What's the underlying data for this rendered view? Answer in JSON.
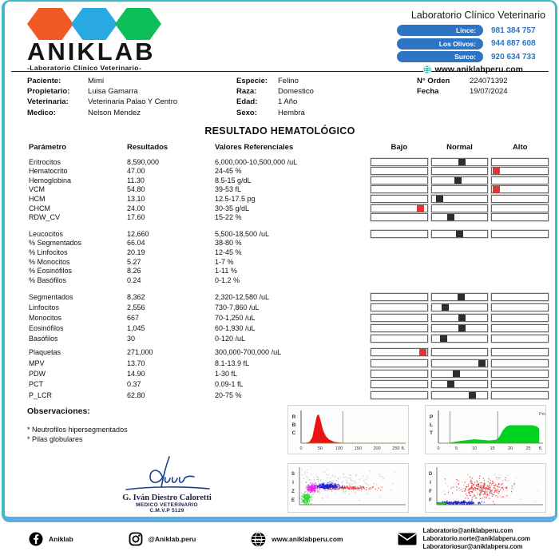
{
  "colors": {
    "hex_orange": "#F15A25",
    "hex_blue": "#29A9E1",
    "hex_green": "#0DBF5A",
    "pill_blue": "#2E74C4",
    "phone_blue": "#2E74C4",
    "globe_teal": "#17B3A0",
    "marker_black": "#2E2E2E",
    "marker_red": "#E23636",
    "border_teal": "#41BAC8",
    "border_blue": "#5CADE2",
    "signature_blue": "#1B3F8F"
  },
  "header": {
    "logo": {
      "brand": "ANIKLAB",
      "tagline": "-Laboratorio Clinico Veterinario-"
    },
    "title": "Laboratorio Clínico Veterinario",
    "phones": [
      {
        "label": "Lince:",
        "number": "981 384 757"
      },
      {
        "label": "Los Olivos:",
        "number": "944 887 608"
      },
      {
        "label": "Surco:",
        "number": "920 634 733"
      }
    ],
    "website": "www.aniklabperu.com"
  },
  "patient": {
    "left": [
      {
        "label": "Paciente:",
        "value": "Mimi"
      },
      {
        "label": "Propietario:",
        "value": "Luisa Gamarra"
      },
      {
        "label": "Veterinaria:",
        "value": "Veterinaria Palao Y Centro"
      },
      {
        "label": "Medico:",
        "value": "Nelson Mendez"
      }
    ],
    "middle": [
      {
        "label": "Especie:",
        "value": "Felino"
      },
      {
        "label": "Raza:",
        "value": "Domestico"
      },
      {
        "label": "Edad:",
        "value": "1 Año"
      },
      {
        "label": "Sexo:",
        "value": "Hembra"
      }
    ],
    "right": [
      {
        "label": "N° Orden",
        "value": "224071392"
      },
      {
        "label": "Fecha",
        "value": "19/07/2024"
      }
    ]
  },
  "report": {
    "title": "RESULTADO HEMATOLÓGICO",
    "columns": {
      "param": "Parámetro",
      "result": "Resultados",
      "ref": "Valores Referenciales",
      "bajo": "Bajo",
      "normal": "Normal",
      "alto": "Alto"
    },
    "groups": [
      {
        "rows": [
          {
            "param": "Eritrocitos",
            "result": "8,590,000",
            "ref": "6,000,000-10,500,000 /uL",
            "marker": {
              "box": "normal",
              "pos": 0.54,
              "color": "black"
            }
          },
          {
            "param": "Hematocrito",
            "result": "47.00",
            "ref": "24-45 %",
            "marker": {
              "box": "alto",
              "pos": 0.06,
              "color": "red"
            }
          },
          {
            "param": "Hemoglobina",
            "result": "11.30",
            "ref": "8.5-15 g/dL",
            "marker": {
              "box": "normal",
              "pos": 0.46,
              "color": "black"
            }
          },
          {
            "param": "VCM",
            "result": "54.80",
            "ref": "39-53 fL",
            "marker": {
              "box": "alto",
              "pos": 0.06,
              "color": "red"
            }
          },
          {
            "param": "HCM",
            "result": "13.10",
            "ref": "12.5-17.5 pg",
            "marker": {
              "box": "normal",
              "pos": 0.14,
              "color": "black"
            }
          },
          {
            "param": "CHCM",
            "result": "24.00",
            "ref": "30-35 g/dL",
            "marker": {
              "box": "bajo",
              "pos": 0.87,
              "color": "red"
            }
          },
          {
            "param": "RDW_CV",
            "result": "17.60",
            "ref": "15-22 %",
            "marker": {
              "box": "normal",
              "pos": 0.33,
              "color": "black"
            }
          }
        ]
      },
      {
        "rows": [
          {
            "param": "Leucocitos",
            "result": "12,660",
            "ref": "5,500-18,500 /uL",
            "marker": {
              "box": "normal",
              "pos": 0.49,
              "color": "black"
            }
          },
          {
            "param": "% Segmentados",
            "result": "66.04",
            "ref": "38-80 %",
            "marker": null
          },
          {
            "param": "% Linfocitos",
            "result": "20.19",
            "ref": "12-45 %",
            "marker": null
          },
          {
            "param": "% Monocitos",
            "result": "5.27",
            "ref": "1-7 %",
            "marker": null
          },
          {
            "param": "% Eosinófilos",
            "result": "8.26",
            "ref": "1-11 %",
            "marker": null
          },
          {
            "param": "% Basófilos",
            "result": "0.24",
            "ref": "0-1.2 %",
            "marker": null
          }
        ]
      },
      {
        "rows": [
          {
            "param": "Segmentados",
            "result": "8,362",
            "ref": "2,320-12,580 /uL",
            "marker": {
              "box": "normal",
              "pos": 0.52,
              "color": "black"
            }
          },
          {
            "param": "Linfocitos",
            "result": "2,556",
            "ref": "730-7,860 /uL",
            "marker": {
              "box": "normal",
              "pos": 0.23,
              "color": "black"
            }
          },
          {
            "param": "Monocitos",
            "result": "667",
            "ref": "70-1,250 /uL",
            "marker": {
              "box": "normal",
              "pos": 0.53,
              "color": "black"
            }
          },
          {
            "param": "Eosinófilos",
            "result": "1,045",
            "ref": "60-1,930 /uL",
            "marker": {
              "box": "normal",
              "pos": 0.53,
              "color": "black"
            }
          },
          {
            "param": "Basófilos",
            "result": "30",
            "ref": "0-120 /uL",
            "marker": {
              "box": "normal",
              "pos": 0.21,
              "color": "black"
            }
          }
        ]
      },
      {
        "rows": [
          {
            "param": "Plaquetas",
            "result": "271,000",
            "ref": "300,000-700,000 /uL",
            "marker": {
              "box": "bajo",
              "pos": 0.92,
              "color": "red"
            }
          },
          {
            "param": "MPV",
            "result": "13.70",
            "ref": "8.1-13.9 fL",
            "marker": {
              "box": "normal",
              "pos": 0.9,
              "color": "black"
            }
          },
          {
            "param": "PDW",
            "result": "14.90",
            "ref": "1-30 fL",
            "marker": {
              "box": "normal",
              "pos": 0.43,
              "color": "black"
            }
          },
          {
            "param": "PCT",
            "result": "0.37",
            "ref": "0.09-1 fL",
            "marker": {
              "box": "normal",
              "pos": 0.33,
              "color": "black"
            }
          },
          {
            "param": "P_LCR",
            "result": "62.80",
            "ref": "20-75 %",
            "marker": {
              "box": "normal",
              "pos": 0.72,
              "color": "black"
            }
          }
        ]
      }
    ]
  },
  "observations": {
    "title": "Observaciones:",
    "items": [
      "* Neutrofilos hipersegmentados",
      "* Pilas globulares"
    ]
  },
  "signature": {
    "name": "G. Iván Diestro Caloretti",
    "role": "MEDICO VETERINARIO",
    "license": "C.M.V.P 5129"
  },
  "chart_data": [
    {
      "id": "rbc",
      "type": "area",
      "title": "RBC",
      "xlabel": "fL",
      "xticks": [
        0,
        50,
        100,
        150,
        200,
        250
      ],
      "xmax": 265,
      "color": "#EE1111",
      "vlines": [
        110
      ],
      "curve": [
        [
          10,
          0
        ],
        [
          22,
          0.04
        ],
        [
          30,
          0.2
        ],
        [
          36,
          0.58
        ],
        [
          42,
          0.95
        ],
        [
          46,
          1.0
        ],
        [
          51,
          0.8
        ],
        [
          57,
          0.47
        ],
        [
          65,
          0.24
        ],
        [
          75,
          0.11
        ],
        [
          88,
          0.04
        ],
        [
          103,
          0.01
        ],
        [
          114,
          0
        ]
      ]
    },
    {
      "id": "plt",
      "type": "area",
      "title": "PLT",
      "xlabel": "fL",
      "corner_label": "Pm",
      "xticks": [
        0,
        5,
        10,
        15,
        20,
        25
      ],
      "xmax": 28,
      "color": "#00D31F",
      "vlines": [
        3.2,
        16.5
      ],
      "curve": [
        [
          2.8,
          0
        ],
        [
          4,
          0.03
        ],
        [
          6,
          0.07
        ],
        [
          8,
          0.1
        ],
        [
          10,
          0.13
        ],
        [
          12,
          0.11
        ],
        [
          14,
          0.09
        ],
        [
          16,
          0.11
        ],
        [
          17,
          0.22
        ],
        [
          18,
          0.45
        ],
        [
          19,
          0.58
        ],
        [
          20,
          0.62
        ],
        [
          26,
          0.62
        ],
        [
          27.4,
          0.58
        ],
        [
          28,
          0.5
        ],
        [
          28,
          0
        ]
      ]
    },
    {
      "id": "size",
      "type": "scatter",
      "title": "SIZE",
      "clusters": [
        {
          "name": "background-gray",
          "color": "#BBBBBB",
          "count": 170,
          "cx": 0.33,
          "cy": 0.55,
          "sx": 0.2,
          "sy": 0.17,
          "seed": 11
        },
        {
          "name": "eosinophil-red",
          "color": "#E83030",
          "count": 140,
          "cx": 0.45,
          "cy": 0.45,
          "sx": 0.13,
          "sy": 0.025,
          "seed": 21
        },
        {
          "name": "neutrophil-blue",
          "color": "#2222CC",
          "count": 280,
          "cx": 0.27,
          "cy": 0.49,
          "sx": 0.055,
          "sy": 0.035,
          "seed": 31
        },
        {
          "name": "lymph-magenta",
          "color": "#EE22EE",
          "count": 170,
          "cx": 0.12,
          "cy": 0.44,
          "sx": 0.022,
          "sy": 0.055,
          "seed": 41
        },
        {
          "name": "platelet-green",
          "color": "#22DD22",
          "count": 150,
          "cx": 0.06,
          "cy": 0.15,
          "sx": 0.02,
          "sy": 0.08,
          "seed": 51
        }
      ]
    },
    {
      "id": "diff",
      "type": "scatter",
      "title": "DIFF",
      "clusters": [
        {
          "name": "background-gray",
          "color": "#C8C8C8",
          "count": 50,
          "cx": 0.45,
          "cy": 0.5,
          "sx": 0.22,
          "sy": 0.2,
          "seed": 71
        },
        {
          "name": "eosinophil-red",
          "color": "#E83030",
          "count": 270,
          "cx": 0.42,
          "cy": 0.42,
          "sx": 0.13,
          "sy": 0.13,
          "seed": 61
        },
        {
          "name": "neutrophil-blue",
          "color": "#2222CC",
          "count": 250,
          "cx": 0.2,
          "cy": 0.05,
          "sx": 0.1,
          "sy": 0.02,
          "seed": 81
        },
        {
          "name": "platelet-green",
          "color": "#22BB22",
          "count": 80,
          "cx": 0.04,
          "cy": 0.03,
          "sx": 0.025,
          "sy": 0.015,
          "seed": 91
        }
      ]
    }
  ],
  "footer": {
    "facebook": "Aniklab",
    "instagram": "@Aniklab.peru",
    "website": "www.aniklabperu.com",
    "emails": [
      "Laboratorio@aniklabperu.com",
      "Laboratorio.norte@aniklabperu.com",
      "Laboratoriosur@aniklabperu.com"
    ]
  }
}
